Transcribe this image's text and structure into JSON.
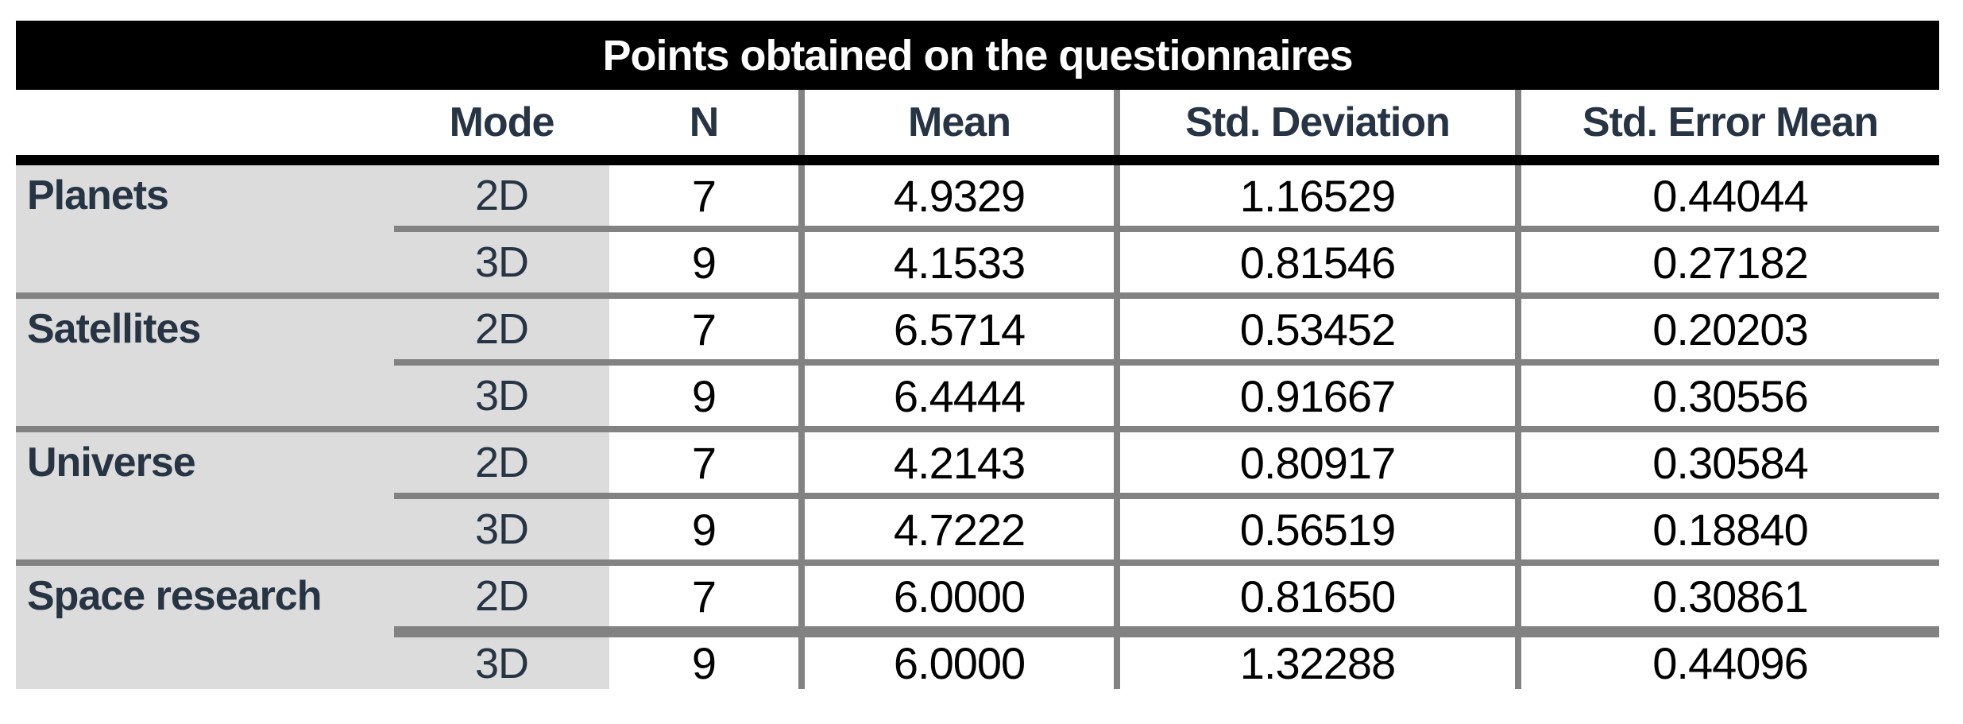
{
  "title": "Points obtained on the questionnaires",
  "columns": {
    "mode": "Mode",
    "n": "N",
    "mean": "Mean",
    "std_deviation": "Std. Deviation",
    "std_error_mean": "Std. Error Mean"
  },
  "groups": [
    {
      "label": "Planets",
      "rows": [
        {
          "mode": "2D",
          "n": "7",
          "mean": "4.9329",
          "std_deviation": "1.16529",
          "std_error_mean": "0.44044"
        },
        {
          "mode": "3D",
          "n": "9",
          "mean": "4.1533",
          "std_deviation": "0.81546",
          "std_error_mean": "0.27182"
        }
      ]
    },
    {
      "label": "Satellites",
      "rows": [
        {
          "mode": "2D",
          "n": "7",
          "mean": "6.5714",
          "std_deviation": "0.53452",
          "std_error_mean": "0.20203"
        },
        {
          "mode": "3D",
          "n": "9",
          "mean": "6.4444",
          "std_deviation": "0.91667",
          "std_error_mean": "0.30556"
        }
      ]
    },
    {
      "label": "Universe",
      "rows": [
        {
          "mode": "2D",
          "n": "7",
          "mean": "4.2143",
          "std_deviation": "0.80917",
          "std_error_mean": "0.30584"
        },
        {
          "mode": "3D",
          "n": "9",
          "mean": "4.7222",
          "std_deviation": "0.56519",
          "std_error_mean": "0.18840"
        }
      ]
    },
    {
      "label": "Space research",
      "rows": [
        {
          "mode": "2D",
          "n": "7",
          "mean": "6.0000",
          "std_deviation": "0.81650",
          "std_error_mean": "0.30861"
        },
        {
          "mode": "3D",
          "n": "9",
          "mean": "6.0000",
          "std_deviation": "1.32288",
          "std_error_mean": "0.44096"
        }
      ]
    }
  ],
  "colors": {
    "title_bar_bg": "#000000",
    "title_text": "#ffffff",
    "header_text": "#263444",
    "row_label_text": "#263444",
    "value_text": "#000000",
    "shaded_bg": "#dcdcdc",
    "separator_gray": "#828282",
    "border_black": "#000000"
  },
  "chart_data": {
    "type": "table",
    "title": "Points obtained on the questionnaires",
    "columns": [
      "",
      "Mode",
      "N",
      "Mean",
      "Std. Deviation",
      "Std. Error Mean"
    ],
    "rows": [
      [
        "Planets",
        "2D",
        7,
        4.9329,
        1.16529,
        0.44044
      ],
      [
        "Planets",
        "3D",
        9,
        4.1533,
        0.81546,
        0.27182
      ],
      [
        "Satellites",
        "2D",
        7,
        6.5714,
        0.53452,
        0.20203
      ],
      [
        "Satellites",
        "3D",
        9,
        6.4444,
        0.91667,
        0.30556
      ],
      [
        "Universe",
        "2D",
        7,
        4.2143,
        0.80917,
        0.30584
      ],
      [
        "Universe",
        "3D",
        9,
        4.7222,
        0.56519,
        0.1884
      ],
      [
        "Space research",
        "2D",
        7,
        6.0,
        0.8165,
        0.30861
      ],
      [
        "Space research",
        "3D",
        9,
        6.0,
        1.32288,
        0.44096
      ]
    ]
  }
}
